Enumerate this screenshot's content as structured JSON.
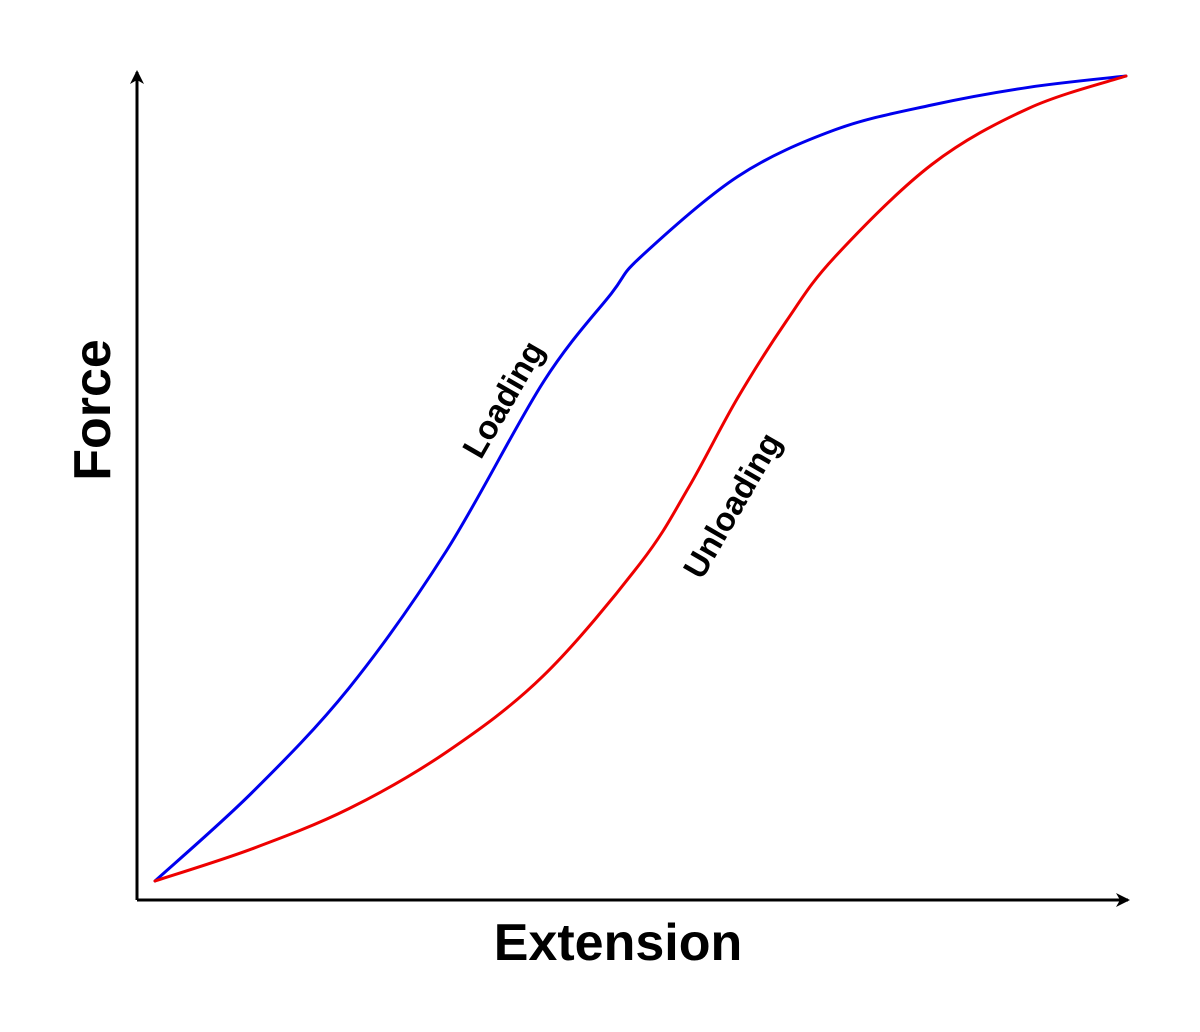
{
  "chart_data": {
    "type": "line",
    "title": "",
    "xlabel": "Extension",
    "ylabel": "Force",
    "xlim": [
      0,
      100
    ],
    "ylim": [
      0,
      100
    ],
    "grid": false,
    "legend": "none",
    "ticks": "none",
    "series": [
      {
        "name": "Loading",
        "color": "#0000ee",
        "points": [
          [
            0,
            0
          ],
          [
            10,
            11
          ],
          [
            20,
            24
          ],
          [
            30,
            41
          ],
          [
            40,
            62
          ],
          [
            47,
            73
          ],
          [
            50,
            77.5
          ],
          [
            60,
            87.5
          ],
          [
            70,
            93.3
          ],
          [
            80,
            96.4
          ],
          [
            90,
            98.6
          ],
          [
            100,
            100
          ]
        ]
      },
      {
        "name": "Unloading",
        "color": "#ee0000",
        "points": [
          [
            0,
            0
          ],
          [
            10,
            4
          ],
          [
            20,
            9
          ],
          [
            30,
            16
          ],
          [
            40,
            25.5
          ],
          [
            50,
            39.5
          ],
          [
            55,
            49
          ],
          [
            60,
            60
          ],
          [
            65,
            69.5
          ],
          [
            70,
            77.5
          ],
          [
            80,
            89
          ],
          [
            90,
            96
          ],
          [
            100,
            100
          ]
        ]
      }
    ]
  }
}
